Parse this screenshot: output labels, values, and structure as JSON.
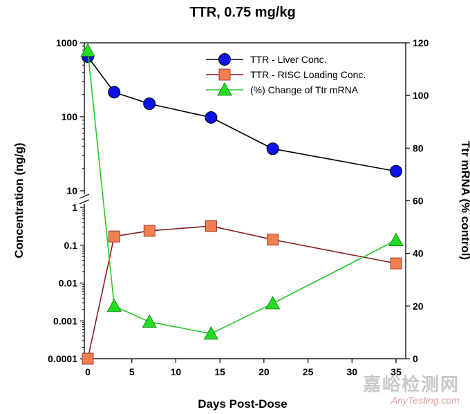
{
  "chart_data": {
    "type": "line",
    "title": "TTR, 0.75 mg/kg",
    "xlabel": "Days Post-Dose",
    "ylabel_left": "Concentration (ng/g)",
    "ylabel_right": "Ttr mRNA (% control)",
    "x_ticks": [
      "0",
      "5",
      "10",
      "15",
      "20",
      "25",
      "30",
      "35"
    ],
    "xlim": [
      0,
      35
    ],
    "y_left_scale": "log, broken axis (upper segment 10–1000, lower segment 0.0001–1)",
    "y_left_upper_ticks": [
      "10",
      "100",
      "1000"
    ],
    "y_left_lower_ticks": [
      "0.0001",
      "0.001",
      "0.01",
      "0.1",
      "1"
    ],
    "y_right_ticks": [
      "0",
      "20",
      "40",
      "60",
      "80",
      "100",
      "120"
    ],
    "y_right_lim": [
      0,
      120
    ],
    "legend_position": "top-right",
    "series": [
      {
        "name": "TTR - Liver Conc.",
        "axis": "left",
        "marker": "circle",
        "color": "#0a14e6",
        "line_color": "#000000",
        "x": [
          0,
          3,
          7,
          14,
          21,
          35
        ],
        "y": [
          650,
          215,
          150,
          98,
          37,
          9
        ]
      },
      {
        "name": "TTR - RISC Loading Conc.",
        "axis": "left",
        "marker": "square",
        "color": "#f08050",
        "line_color": "#8b1a1a",
        "x": [
          0,
          3,
          7,
          14,
          21,
          35
        ],
        "y": [
          0.0001,
          0.17,
          0.24,
          0.32,
          0.14,
          0.033
        ]
      },
      {
        "name": "(%) Change of Ttr mRNA",
        "axis": "right",
        "marker": "triangle",
        "color": "#22dd22",
        "line_color": "#22cc22",
        "x": [
          0,
          3,
          7,
          14,
          21,
          35
        ],
        "y": [
          117,
          20,
          14,
          9.5,
          21,
          45
        ]
      }
    ]
  },
  "watermark": {
    "cn": "嘉峪检测网",
    "en": "AnyTesting.com"
  }
}
